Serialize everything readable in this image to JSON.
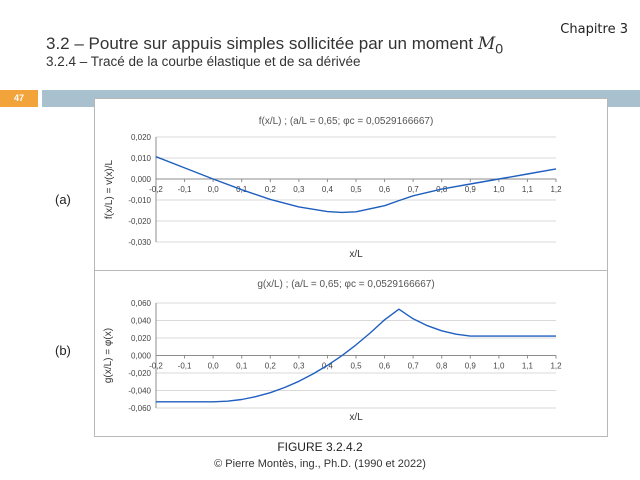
{
  "header": {
    "chapter": "Chapitre 3",
    "title_text": "3.2 – Poutre sur appuis simples sollicitée par un moment ",
    "title_symbol": "M",
    "title_subscript": "0",
    "subtitle": "3.2.4 – Tracé de la courbe élastique et de sa dérivée",
    "page_number": "47"
  },
  "panel_labels": {
    "a": "(a)",
    "b": "(b)"
  },
  "figure_caption": "FIGURE 3.2.4.2",
  "copyright": "© Pierre Montès, ing., Ph.D. (1990 et 2022)",
  "colors": {
    "curve": "#1f5fbf",
    "grid": "#d9d9d9",
    "axis": "#8c8c8c",
    "badge": "#f2a43a",
    "bar": "#a9c0cf"
  },
  "chart_data": [
    {
      "type": "line",
      "title": "f(x/L) ; (a/L = 0,65; φc = 0,0529166667)",
      "xlabel": "x/L",
      "ylabel": "f(x/L) = v(x)/L",
      "xlim": [
        -0.2,
        1.2
      ],
      "ylim": [
        -0.03,
        0.02
      ],
      "x_ticks": [
        "-0,2",
        "-0,1",
        "0,0",
        "0,1",
        "0,2",
        "0,3",
        "0,4",
        "0,5",
        "0,6",
        "0,7",
        "0,8",
        "0,9",
        "1,0",
        "1,1",
        "1,2"
      ],
      "y_ticks": [
        "0,020",
        "0,010",
        "0,000",
        "-0,010",
        "-0,020",
        "-0,030"
      ],
      "grid": true,
      "series": [
        {
          "x": [
            -0.2,
            -0.1,
            0.0,
            0.1,
            0.2,
            0.3,
            0.4,
            0.45,
            0.5,
            0.6,
            0.65,
            0.7,
            0.8,
            0.9,
            1.0,
            1.1,
            1.2
          ],
          "y": [
            0.0106,
            0.0053,
            0.0,
            -0.0051,
            -0.0097,
            -0.0133,
            -0.0155,
            -0.0159,
            -0.0156,
            -0.0127,
            -0.0103,
            -0.008,
            -0.0048,
            -0.0024,
            0.0,
            0.0024,
            0.0048
          ]
        }
      ]
    },
    {
      "type": "line",
      "title": "g(x/L) ; (a/L = 0,65; φc = 0,0529166667)",
      "xlabel": "x/L",
      "ylabel": "g(x/L) = φ(x)",
      "xlim": [
        -0.2,
        1.2
      ],
      "ylim": [
        -0.06,
        0.06
      ],
      "x_ticks": [
        "-0,2",
        "-0,1",
        "0,0",
        "0,1",
        "0,2",
        "0,3",
        "0,4",
        "0,5",
        "0,6",
        "0,7",
        "0,8",
        "0,9",
        "1,0",
        "1,1",
        "1,2"
      ],
      "y_ticks": [
        "0,060",
        "0,040",
        "0,020",
        "0,000",
        "-0,020",
        "-0,040",
        "-0,060"
      ],
      "grid": true,
      "series": [
        {
          "x": [
            -0.2,
            -0.1,
            0.0,
            0.05,
            0.1,
            0.15,
            0.2,
            0.25,
            0.3,
            0.35,
            0.4,
            0.45,
            0.5,
            0.55,
            0.6,
            0.65,
            0.7,
            0.75,
            0.8,
            0.85,
            0.9,
            1.0,
            1.1,
            1.2
          ],
          "y": [
            -0.0529,
            -0.0529,
            -0.0529,
            -0.0522,
            -0.0503,
            -0.047,
            -0.0425,
            -0.0366,
            -0.0295,
            -0.021,
            -0.0113,
            -0.0003,
            0.0121,
            0.0258,
            0.0408,
            0.0529,
            0.0419,
            0.0341,
            0.0282,
            0.0243,
            0.0222,
            0.0222,
            0.0222,
            0.0222
          ]
        }
      ]
    }
  ]
}
